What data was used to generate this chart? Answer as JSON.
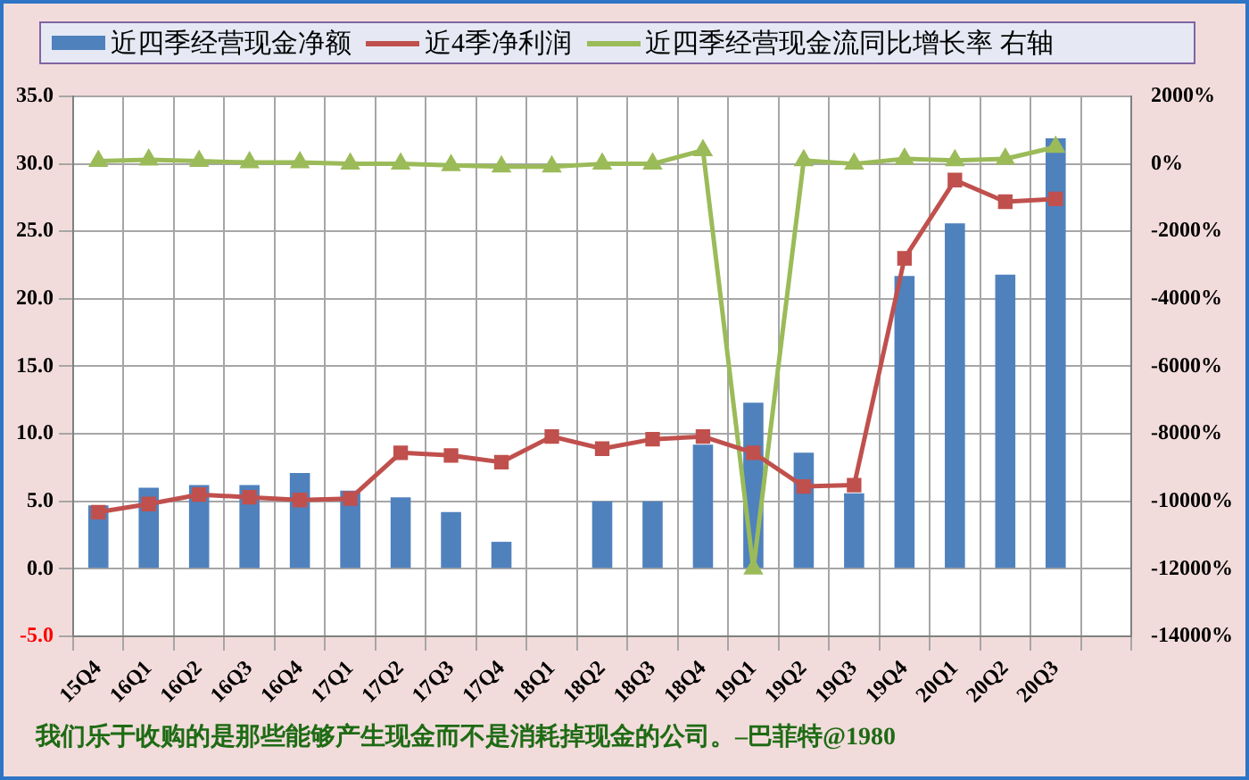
{
  "chart_data": {
    "type": "bar",
    "categories": [
      "15Q4",
      "16Q1",
      "16Q2",
      "16Q3",
      "16Q4",
      "17Q1",
      "17Q2",
      "17Q3",
      "17Q4",
      "18Q1",
      "18Q2",
      "18Q3",
      "18Q4",
      "19Q1",
      "19Q2",
      "19Q3",
      "19Q4",
      "20Q1",
      "20Q2",
      "20Q3",
      null
    ],
    "series": [
      {
        "name": "近四季经营现金净额",
        "color": "#4f81bd",
        "values": [
          4.7,
          6.0,
          6.2,
          6.2,
          7.1,
          5.8,
          5.3,
          4.2,
          2.0,
          null,
          5.0,
          5.0,
          9.2,
          12.3,
          8.6,
          5.6,
          21.7,
          25.6,
          21.8,
          31.9,
          null
        ]
      },
      {
        "name": "近4季净利润",
        "type": "line",
        "color": "#c0504d",
        "marker": "square",
        "values": [
          4.2,
          4.8,
          5.5,
          5.3,
          5.1,
          5.2,
          8.6,
          8.4,
          7.9,
          9.8,
          8.9,
          9.6,
          9.8,
          8.6,
          6.1,
          6.2,
          23.0,
          28.8,
          27.2,
          27.4,
          null
        ]
      },
      {
        "name": "近四季经营现金流同比增长率 右轴",
        "type": "line",
        "axis": "y2",
        "color": "#9bbb59",
        "marker": "triangle",
        "values": [
          80,
          120,
          80,
          40,
          40,
          0,
          0,
          -40,
          -80,
          -80,
          0,
          0,
          400,
          -12000,
          100,
          0,
          150,
          100,
          150,
          500,
          null
        ]
      }
    ],
    "ylim": [
      -5,
      35
    ],
    "yticks": [
      {
        "value": -5,
        "label": "-5.0"
      },
      {
        "value": 0,
        "label": "0.0"
      },
      {
        "value": 5,
        "label": "5.0"
      },
      {
        "value": 10,
        "label": "10.0"
      },
      {
        "value": 15,
        "label": "15.0"
      },
      {
        "value": 20,
        "label": "20.0"
      },
      {
        "value": 25,
        "label": "25.0"
      },
      {
        "value": 30,
        "label": "30.0"
      },
      {
        "value": 35,
        "label": "35.0"
      }
    ],
    "y2lim": [
      -14000,
      2000
    ],
    "y2ticks": [
      {
        "value": -14000,
        "label": "-14000%"
      },
      {
        "value": -12000,
        "label": "-12000%"
      },
      {
        "value": -10000,
        "label": "-10000%"
      },
      {
        "value": -8000,
        "label": "-8000%"
      },
      {
        "value": -6000,
        "label": "-6000%"
      },
      {
        "value": -4000,
        "label": "-4000%"
      },
      {
        "value": -2000,
        "label": "-2000%"
      },
      {
        "value": 0,
        "label": "0%"
      },
      {
        "value": 2000,
        "label": "2000%"
      }
    ],
    "grid": true,
    "legend": "top",
    "annotations": [
      "我们乐于收购的是那些能够产生现金而不是消耗掉现金的公司。–巴菲特@1980"
    ]
  }
}
